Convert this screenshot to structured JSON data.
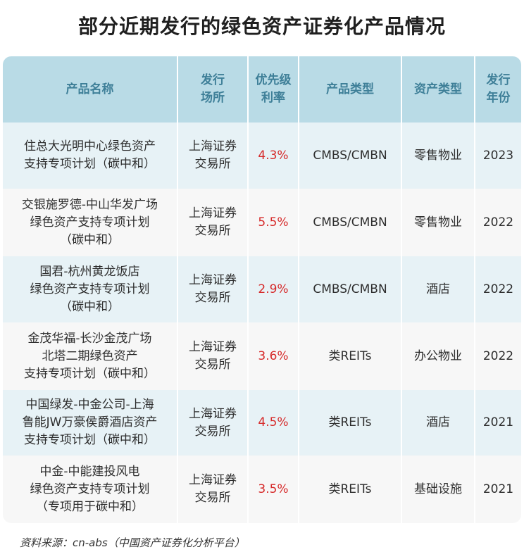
{
  "title": "部分近期发行的绿色资产证券化产品情况",
  "headers": {
    "name": "产品名称",
    "venue": "发行\n场所",
    "rate": "优先级\n利率",
    "type": "产品类型",
    "asset": "资产类型",
    "year": "发行\n年份"
  },
  "rows": [
    {
      "name": "住总大光明中心绿色资产\n支持专项计划（碳中和）",
      "venue": "上海证券\n交易所",
      "rate": "4.3%",
      "type": "CMBS/CMBN",
      "asset": "零售物业",
      "year": "2023"
    },
    {
      "name": "交银施罗德-中山华发广场\n绿色资产支持专项计划\n（碳中和）",
      "venue": "上海证券\n交易所",
      "rate": "5.5%",
      "type": "CMBS/CMBN",
      "asset": "零售物业",
      "year": "2022"
    },
    {
      "name": "国君-杭州黄龙饭店\n绿色资产支持专项计划\n（碳中和）",
      "venue": "上海证券\n交易所",
      "rate": "2.9%",
      "type": "CMBS/CMBN",
      "asset": "酒店",
      "year": "2022"
    },
    {
      "name": "金茂华福-长沙金茂广场\n北塔二期绿色资产\n支持专项计划（碳中和）",
      "venue": "上海证券\n交易所",
      "rate": "3.6%",
      "type": "类REITs",
      "asset": "办公物业",
      "year": "2022"
    },
    {
      "name": "中国绿发-中金公司-上海\n鲁能JW万豪侯爵酒店资产\n支持专项计划（碳中和）",
      "venue": "上海证券\n交易所",
      "rate": "4.5%",
      "type": "类REITs",
      "asset": "酒店",
      "year": "2021"
    },
    {
      "name": "中金-中能建投风电\n绿色资产支持专项计划\n（专项用于碳中和）",
      "venue": "上海证券\n交易所",
      "rate": "3.5%",
      "type": "类REITs",
      "asset": "基础设施",
      "year": "2021"
    }
  ],
  "source": "资料来源：cn-abs（中国资产证券化分析平台）",
  "colors": {
    "header_bg": "#b9dbe6",
    "header_text": "#3e7f98",
    "row_odd": "#e7f2f6",
    "row_even": "#f7f7f7",
    "rate_text": "#d62a2a"
  }
}
